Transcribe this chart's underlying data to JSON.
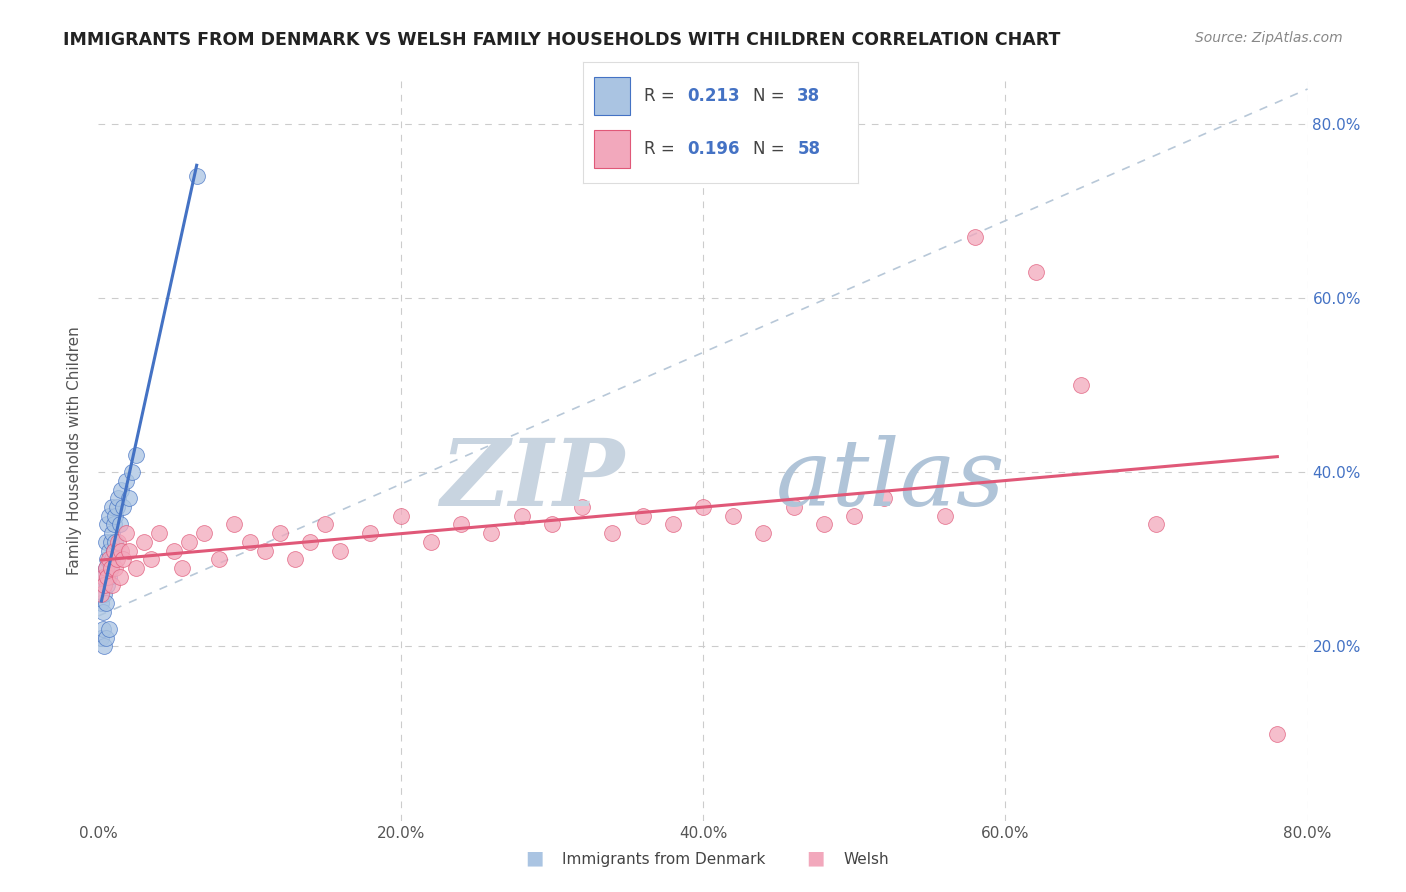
{
  "title": "IMMIGRANTS FROM DENMARK VS WELSH FAMILY HOUSEHOLDS WITH CHILDREN CORRELATION CHART",
  "source": "Source: ZipAtlas.com",
  "ylabel": "Family Households with Children",
  "legend_label_1": "Immigrants from Denmark",
  "legend_label_2": "Welsh",
  "R1": 0.213,
  "N1": 38,
  "R2": 0.196,
  "N2": 58,
  "xlim": [
    0.0,
    0.8
  ],
  "ylim": [
    0.0,
    0.85
  ],
  "xticks": [
    0.0,
    0.2,
    0.4,
    0.6,
    0.8
  ],
  "xtick_labels": [
    "0.0%",
    "20.0%",
    "40.0%",
    "60.0%",
    "80.0%"
  ],
  "ytick_labels_right": [
    "20.0%",
    "40.0%",
    "60.0%",
    "80.0%"
  ],
  "color_blue": "#aac4e2",
  "color_pink": "#f2a8bc",
  "line_color_blue": "#4472c4",
  "line_color_pink": "#e05878",
  "line_color_dashed": "#b8c8d8",
  "watermark_zip_color": "#c8d4e0",
  "watermark_atlas_color": "#b0c4d8",
  "background_color": "#ffffff",
  "denmark_x": [
    0.002,
    0.003,
    0.003,
    0.004,
    0.004,
    0.005,
    0.005,
    0.005,
    0.006,
    0.006,
    0.006,
    0.007,
    0.007,
    0.007,
    0.008,
    0.008,
    0.009,
    0.009,
    0.009,
    0.01,
    0.01,
    0.011,
    0.011,
    0.012,
    0.013,
    0.014,
    0.015,
    0.016,
    0.018,
    0.02,
    0.022,
    0.025,
    0.002,
    0.003,
    0.004,
    0.005,
    0.007,
    0.065
  ],
  "denmark_y": [
    0.25,
    0.27,
    0.24,
    0.28,
    0.26,
    0.29,
    0.32,
    0.25,
    0.3,
    0.27,
    0.34,
    0.31,
    0.28,
    0.35,
    0.32,
    0.29,
    0.33,
    0.3,
    0.36,
    0.34,
    0.31,
    0.35,
    0.32,
    0.36,
    0.37,
    0.34,
    0.38,
    0.36,
    0.39,
    0.37,
    0.4,
    0.42,
    0.21,
    0.22,
    0.2,
    0.21,
    0.22,
    0.74
  ],
  "welsh_x": [
    0.002,
    0.003,
    0.004,
    0.005,
    0.006,
    0.007,
    0.008,
    0.009,
    0.01,
    0.011,
    0.012,
    0.013,
    0.014,
    0.015,
    0.016,
    0.018,
    0.02,
    0.025,
    0.03,
    0.035,
    0.04,
    0.05,
    0.055,
    0.06,
    0.07,
    0.08,
    0.09,
    0.1,
    0.11,
    0.12,
    0.13,
    0.14,
    0.15,
    0.16,
    0.18,
    0.2,
    0.22,
    0.24,
    0.26,
    0.28,
    0.3,
    0.32,
    0.34,
    0.36,
    0.38,
    0.4,
    0.42,
    0.44,
    0.46,
    0.48,
    0.5,
    0.52,
    0.56,
    0.58,
    0.62,
    0.65,
    0.7,
    0.78
  ],
  "welsh_y": [
    0.26,
    0.28,
    0.27,
    0.29,
    0.28,
    0.3,
    0.29,
    0.27,
    0.31,
    0.29,
    0.3,
    0.32,
    0.28,
    0.31,
    0.3,
    0.33,
    0.31,
    0.29,
    0.32,
    0.3,
    0.33,
    0.31,
    0.29,
    0.32,
    0.33,
    0.3,
    0.34,
    0.32,
    0.31,
    0.33,
    0.3,
    0.32,
    0.34,
    0.31,
    0.33,
    0.35,
    0.32,
    0.34,
    0.33,
    0.35,
    0.34,
    0.36,
    0.33,
    0.35,
    0.34,
    0.36,
    0.35,
    0.33,
    0.36,
    0.34,
    0.35,
    0.37,
    0.35,
    0.67,
    0.63,
    0.5,
    0.34,
    0.1
  ]
}
